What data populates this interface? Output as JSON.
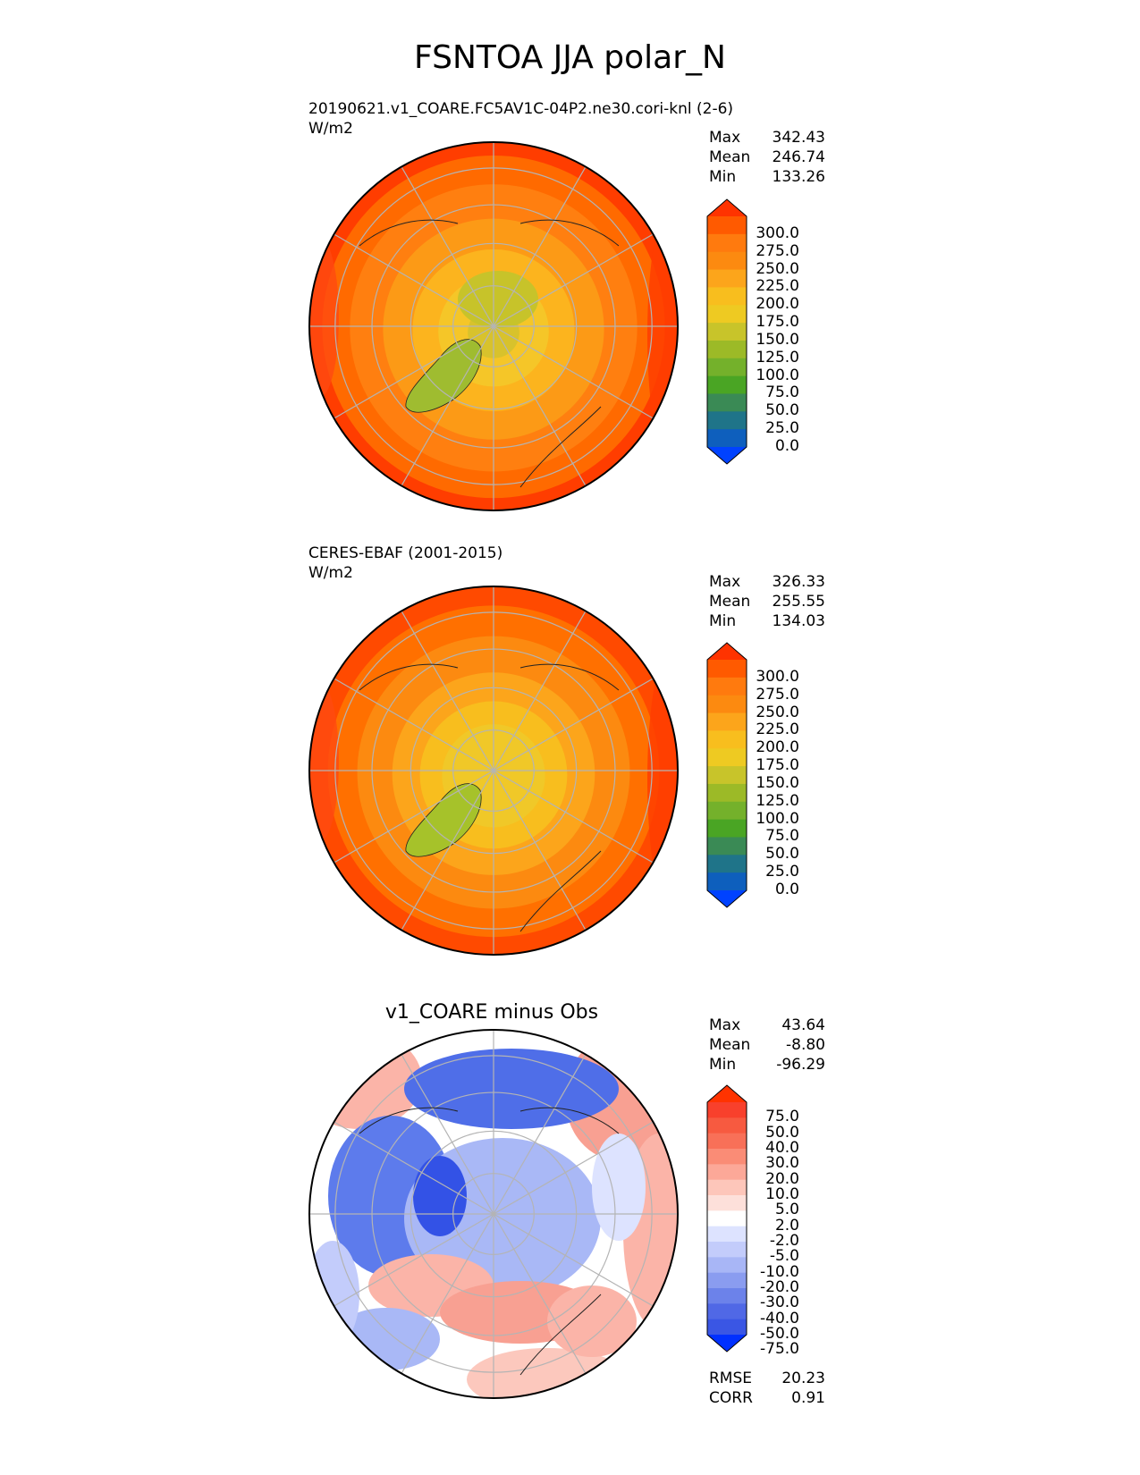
{
  "title": "FSNTOA JJA polar_N",
  "panels": [
    {
      "name": "test",
      "subtitle_line1": "20190621.v1_COARE.FC5AV1C-04P2.ne30.cori-knl (2-6)",
      "subtitle_line2": "W/m2",
      "stats": [
        {
          "label": "Max",
          "value": "342.43"
        },
        {
          "label": "Mean",
          "value": "246.74"
        },
        {
          "label": "Min",
          "value": "133.26"
        }
      ],
      "colorbar_ticks": [
        "300.0",
        "275.0",
        "250.0",
        "225.0",
        "200.0",
        "175.0",
        "150.0",
        "125.0",
        "100.0",
        "75.0",
        "50.0",
        "25.0",
        "0.0"
      ],
      "colorbar_colors": [
        "#ff3300",
        "#ff5a00",
        "#ff7a0e",
        "#fc8a10",
        "#fca51b",
        "#f8be1e",
        "#eeca22",
        "#c8c42a",
        "#9cba27",
        "#74b12b",
        "#4aa524",
        "#3a8a55",
        "#1f7489",
        "#0e5fbd",
        "#0042ff"
      ]
    },
    {
      "name": "reference",
      "subtitle_line1": "CERES-EBAF (2001-2015)",
      "subtitle_line2": "W/m2",
      "stats": [
        {
          "label": "Max",
          "value": "326.33"
        },
        {
          "label": "Mean",
          "value": "255.55"
        },
        {
          "label": "Min",
          "value": "134.03"
        }
      ],
      "colorbar_ticks": [
        "300.0",
        "275.0",
        "250.0",
        "225.0",
        "200.0",
        "175.0",
        "150.0",
        "125.0",
        "100.0",
        "75.0",
        "50.0",
        "25.0",
        "0.0"
      ],
      "colorbar_colors": [
        "#ff3300",
        "#ff5a00",
        "#ff7a0e",
        "#fc8a10",
        "#fca51b",
        "#f8be1e",
        "#eeca22",
        "#c8c42a",
        "#9cba27",
        "#74b12b",
        "#4aa524",
        "#3a8a55",
        "#1f7489",
        "#0e5fbd",
        "#0042ff"
      ]
    },
    {
      "name": "difference",
      "title": "v1_COARE minus Obs",
      "stats": [
        {
          "label": "Max",
          "value": "43.64"
        },
        {
          "label": "Mean",
          "value": "-8.80"
        },
        {
          "label": "Min",
          "value": "-96.29"
        }
      ],
      "colorbar_ticks": [
        "75.0",
        "50.0",
        "40.0",
        "30.0",
        "20.0",
        "10.0",
        "5.0",
        "2.0",
        "-2.0",
        "-5.0",
        "-10.0",
        "-20.0",
        "-30.0",
        "-40.0",
        "-50.0",
        "-75.0"
      ],
      "colorbar_colors": [
        "#ff3300",
        "#f8402c",
        "#f75a40",
        "#f87058",
        "#fa8c76",
        "#fca898",
        "#fdc6ba",
        "#fde0da",
        "#ffffff",
        "#dde3ff",
        "#c3ccfb",
        "#a8b6f6",
        "#8a9cf0",
        "#6c82ea",
        "#5068e6",
        "#3a56e4",
        "#0030ff"
      ],
      "metrics": [
        {
          "label": "RMSE",
          "value": "20.23"
        },
        {
          "label": "CORR",
          "value": "0.91"
        }
      ]
    }
  ]
}
